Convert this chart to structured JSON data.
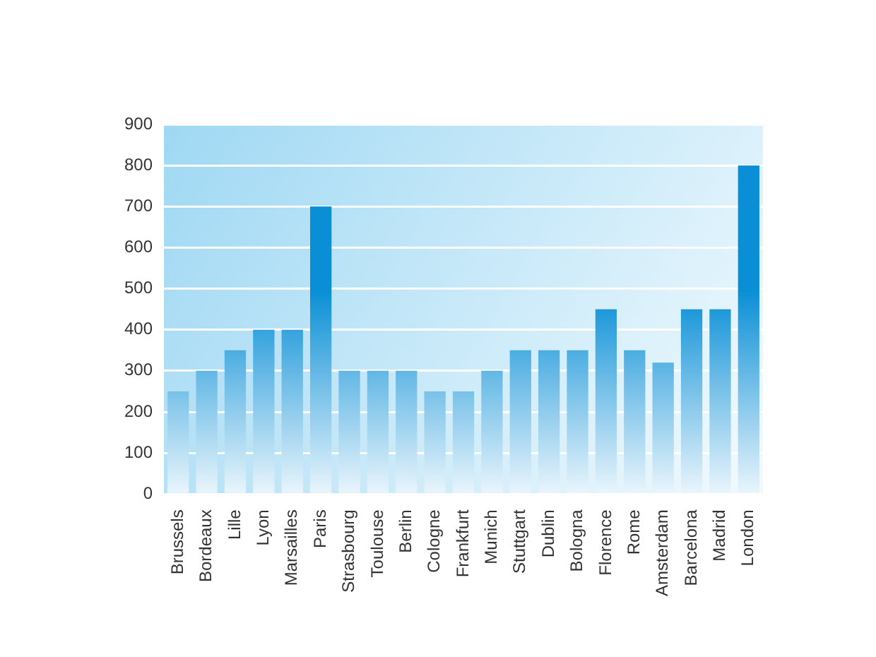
{
  "chart_data": {
    "type": "bar",
    "categories": [
      "Brussels",
      "Bordeaux",
      "Lille",
      "Lyon",
      "Marsailles",
      "Paris",
      "Strasbourg",
      "Toulouse",
      "Berlin",
      "Cologne",
      "Frankfurt",
      "Munich",
      "Stuttgart",
      "Dublin",
      "Bologna",
      "Florence",
      "Rome",
      "Amsterdam",
      "Barcelona",
      "Madrid",
      "London"
    ],
    "values": [
      250,
      300,
      350,
      400,
      400,
      700,
      300,
      300,
      300,
      250,
      250,
      300,
      350,
      350,
      350,
      450,
      350,
      320,
      450,
      450,
      800
    ],
    "color": "#0a8fd6",
    "ylim": [
      0,
      900
    ],
    "yticks": [
      0,
      100,
      200,
      300,
      400,
      500,
      600,
      700,
      800,
      900
    ],
    "grid": "y",
    "legend": false
  }
}
